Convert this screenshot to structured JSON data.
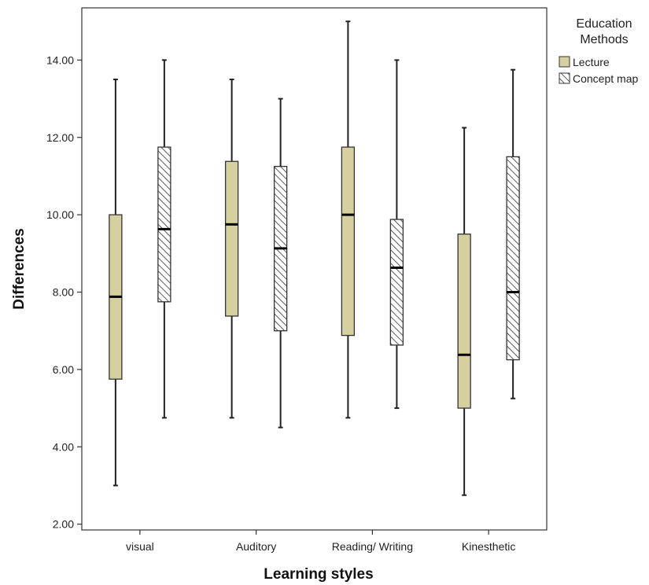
{
  "chart_data": {
    "type": "boxplot",
    "xlabel": "Learning styles",
    "ylabel": "Differences",
    "ylim": [
      1.85,
      15.35
    ],
    "yticks": [
      2,
      4,
      6,
      8,
      10,
      12,
      14
    ],
    "ytick_labels": [
      "2.00",
      "4.00",
      "6.00",
      "8.00",
      "10.00",
      "12.00",
      "14.00"
    ],
    "categories": [
      "visual",
      "Auditory",
      "Reading/ Writing",
      "Kinesthetic"
    ],
    "legend": {
      "title_lines": [
        "Education",
        "Methods"
      ],
      "placement": "right"
    },
    "series": [
      {
        "name": "Lecture",
        "color": "#d6cfa0",
        "pattern": "solid",
        "boxes": [
          {
            "min": 3.0,
            "q1": 5.75,
            "median": 7.88,
            "q3": 10.0,
            "max": 13.5
          },
          {
            "min": 4.75,
            "q1": 7.38,
            "median": 9.75,
            "q3": 11.38,
            "max": 13.5
          },
          {
            "min": 4.75,
            "q1": 6.88,
            "median": 10.0,
            "q3": 11.75,
            "max": 15.0
          },
          {
            "min": 2.75,
            "q1": 5.0,
            "median": 6.38,
            "q3": 9.5,
            "max": 12.25
          }
        ]
      },
      {
        "name": "Concept map",
        "color": "#ffffff",
        "pattern": "hatch",
        "boxes": [
          {
            "min": 4.75,
            "q1": 7.75,
            "median": 9.63,
            "q3": 11.75,
            "max": 14.0
          },
          {
            "min": 4.5,
            "q1": 7.0,
            "median": 9.13,
            "q3": 11.25,
            "max": 13.0
          },
          {
            "min": 5.0,
            "q1": 6.63,
            "median": 8.63,
            "q3": 9.88,
            "max": 14.0
          },
          {
            "min": 5.25,
            "q1": 6.25,
            "median": 8.0,
            "q3": 11.5,
            "max": 13.75
          }
        ]
      }
    ]
  }
}
